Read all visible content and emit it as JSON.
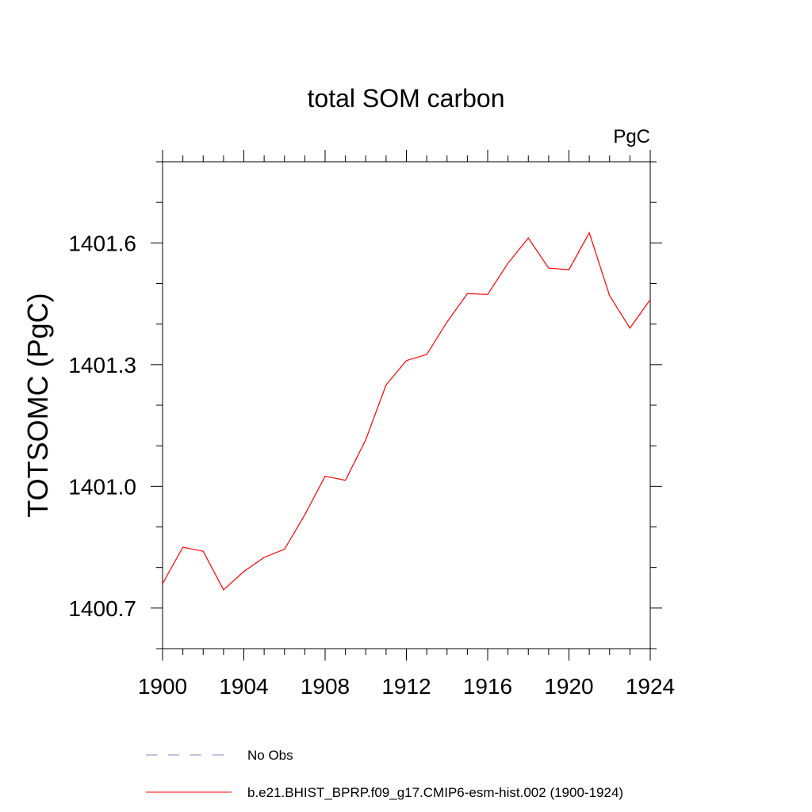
{
  "chart_data": {
    "type": "line",
    "title": "total SOM carbon",
    "units_label": "PgC",
    "xlabel": "",
    "ylabel": "TOTSOMC  (PgC)",
    "xlim": [
      1900,
      1924
    ],
    "ylim": [
      1400.6,
      1401.8
    ],
    "x_ticks": [
      1900,
      1904,
      1908,
      1912,
      1916,
      1920,
      1924
    ],
    "x_tick_labels": [
      "1900",
      "1904",
      "1908",
      "1912",
      "1916",
      "1920",
      "1924"
    ],
    "x_minor_step": 1,
    "y_ticks": [
      1400.7,
      1401.0,
      1401.3,
      1401.6
    ],
    "y_tick_labels": [
      "1400.7",
      "1401.0",
      "1401.3",
      "1401.6"
    ],
    "y_minor_step": 0.1,
    "grid": false,
    "legend_position": "bottom",
    "series": [
      {
        "name": "b.e21.BHIST_BPRP.f09_g17.CMIP6-esm-hist.002 (1900-1924)",
        "color": "#ff0000",
        "style": "solid",
        "x": [
          1900,
          1901,
          1902,
          1903,
          1904,
          1905,
          1906,
          1907,
          1908,
          1909,
          1910,
          1911,
          1912,
          1913,
          1914,
          1915,
          1916,
          1917,
          1918,
          1919,
          1920,
          1921,
          1922,
          1923,
          1924
        ],
        "values": [
          1400.76,
          1400.85,
          1400.84,
          1400.745,
          1400.79,
          1400.825,
          1400.845,
          1400.93,
          1401.025,
          1401.015,
          1401.115,
          1401.25,
          1401.31,
          1401.325,
          1401.405,
          1401.475,
          1401.473,
          1401.55,
          1401.612,
          1401.538,
          1401.534,
          1401.625,
          1401.47,
          1401.39,
          1401.46
        ]
      }
    ],
    "legend": [
      {
        "label": "No Obs",
        "color": "#7f7fbf",
        "style": "dashed"
      },
      {
        "label": "b.e21.BHIST_BPRP.f09_g17.CMIP6-esm-hist.002 (1900-1924)",
        "color": "#ff0000",
        "style": "solid"
      }
    ]
  }
}
